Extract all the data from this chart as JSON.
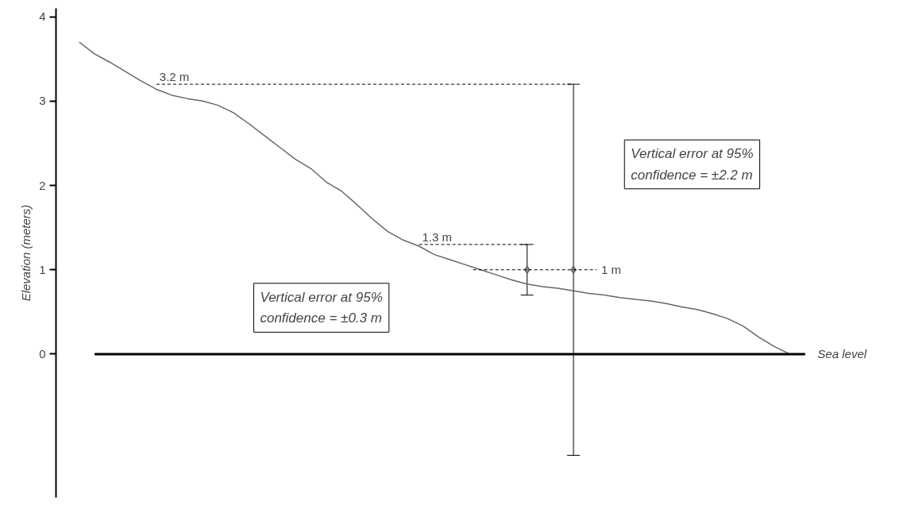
{
  "chart_data": {
    "type": "line",
    "ylabel": "Elevation (meters)",
    "categories": [
      null,
      null,
      null,
      null,
      null,
      null,
      null,
      null,
      null,
      null,
      null,
      null,
      null,
      null,
      null,
      null,
      null,
      null,
      null,
      null,
      null,
      null,
      null,
      null,
      null,
      null,
      null,
      null,
      null,
      null,
      null,
      null,
      null,
      null,
      null,
      null,
      null,
      null,
      null,
      null,
      null,
      null,
      null,
      null,
      null,
      null,
      null
    ],
    "series": [
      {
        "color": "#666666",
        "values": [
          3.7,
          3.56,
          3.46,
          3.35,
          3.24,
          3.14,
          3.07,
          3.03,
          3.0,
          2.95,
          2.86,
          2.73,
          2.59,
          2.45,
          2.31,
          2.2,
          2.04,
          1.93,
          1.77,
          1.6,
          1.45,
          1.35,
          1.28,
          1.18,
          1.12,
          1.06,
          1.0,
          0.94,
          0.88,
          0.83,
          0.8,
          0.78,
          0.75,
          0.72,
          0.7,
          0.67,
          0.65,
          0.63,
          0.6,
          0.56,
          0.53,
          0.48,
          0.42,
          0.33,
          0.2,
          0.09,
          0.0
        ]
      },
      {
        "type": "scatter",
        "color": "#808080",
        "marker": "diamond",
        "values": [
          null,
          null,
          null,
          null,
          null,
          null,
          null,
          null,
          null,
          null,
          null,
          null,
          null,
          null,
          null,
          null,
          null,
          null,
          null,
          null,
          null,
          null,
          null,
          null,
          null,
          null,
          null,
          null,
          null,
          1,
          null,
          null,
          1,
          null,
          null,
          null,
          null,
          null,
          null,
          null,
          null,
          null,
          null,
          null,
          null,
          null,
          null
        ],
        "errors": [
          null,
          null,
          null,
          null,
          null,
          null,
          null,
          null,
          null,
          null,
          null,
          null,
          null,
          null,
          null,
          null,
          null,
          null,
          null,
          null,
          null,
          null,
          null,
          null,
          null,
          null,
          null,
          null,
          null,
          0.3,
          null,
          null,
          2.2,
          null,
          null,
          null,
          null,
          null,
          null,
          null,
          null,
          null,
          null,
          null,
          null,
          null,
          null
        ]
      }
    ],
    "ylim": [
      -1.7,
      4.1
    ],
    "yticks": [
      0,
      1,
      2,
      3,
      4
    ],
    "tick_labels": "y",
    "grid": false,
    "ref_lines": [
      {
        "axis": "y",
        "value": 3.2,
        "label": "3.2 m",
        "line_style": "dashed"
      },
      {
        "axis": "y",
        "value": 1.3,
        "label": "1.3 m",
        "line_style": "dashed"
      },
      {
        "axis": "y",
        "value": 1,
        "label": "1 m",
        "line_style": "dashed"
      },
      {
        "axis": "y",
        "value": 0,
        "label": "Sea level",
        "line_style": "solid",
        "color": "#000000"
      }
    ],
    "annotations": [
      "Vertical error at 95% confidence = ±2.2 m",
      "Vertical error at 95% confidence = ±0.3 m"
    ]
  }
}
